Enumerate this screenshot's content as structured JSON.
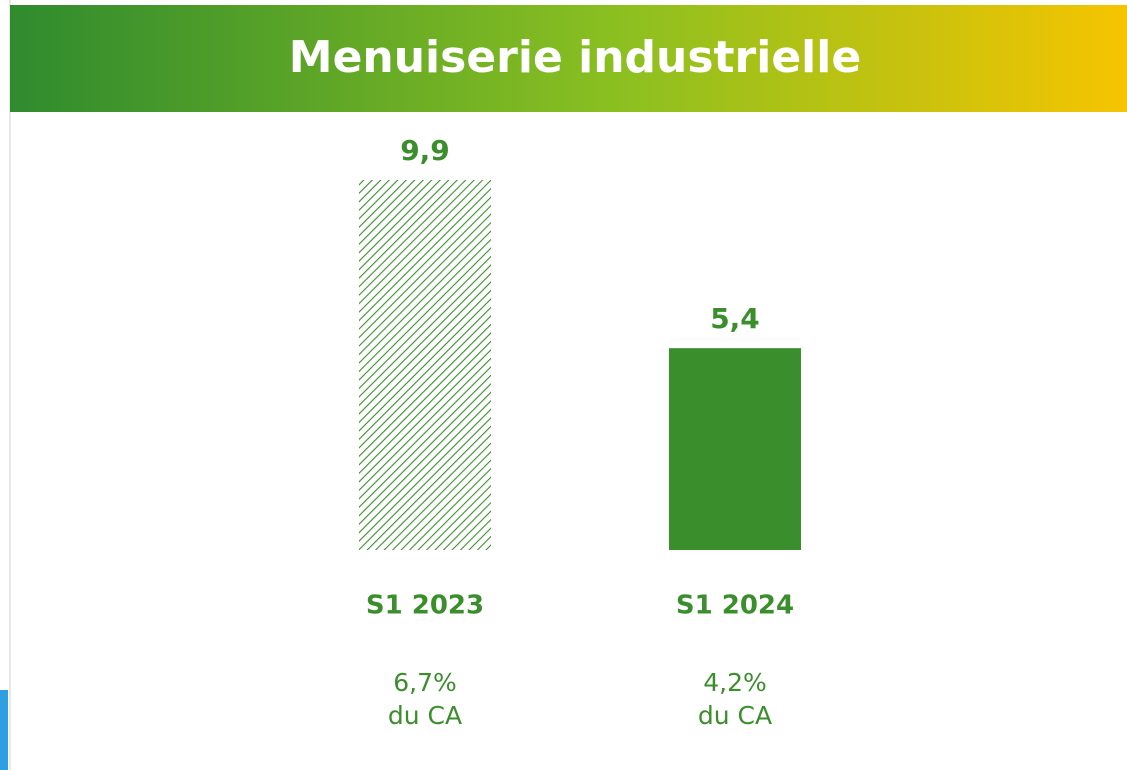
{
  "chart_data": {
    "type": "bar",
    "title": "Menuiserie industrielle",
    "categories": [
      "S1 2023",
      "S1 2024"
    ],
    "values": [
      9.9,
      5.4
    ],
    "value_labels": [
      "9,9",
      "5,4"
    ],
    "fills": [
      "hatched",
      "solid"
    ],
    "color": "#3a8f2c",
    "annotations": [
      [
        "6,7%",
        "du CA"
      ],
      [
        "4,2%",
        "du CA"
      ]
    ]
  }
}
